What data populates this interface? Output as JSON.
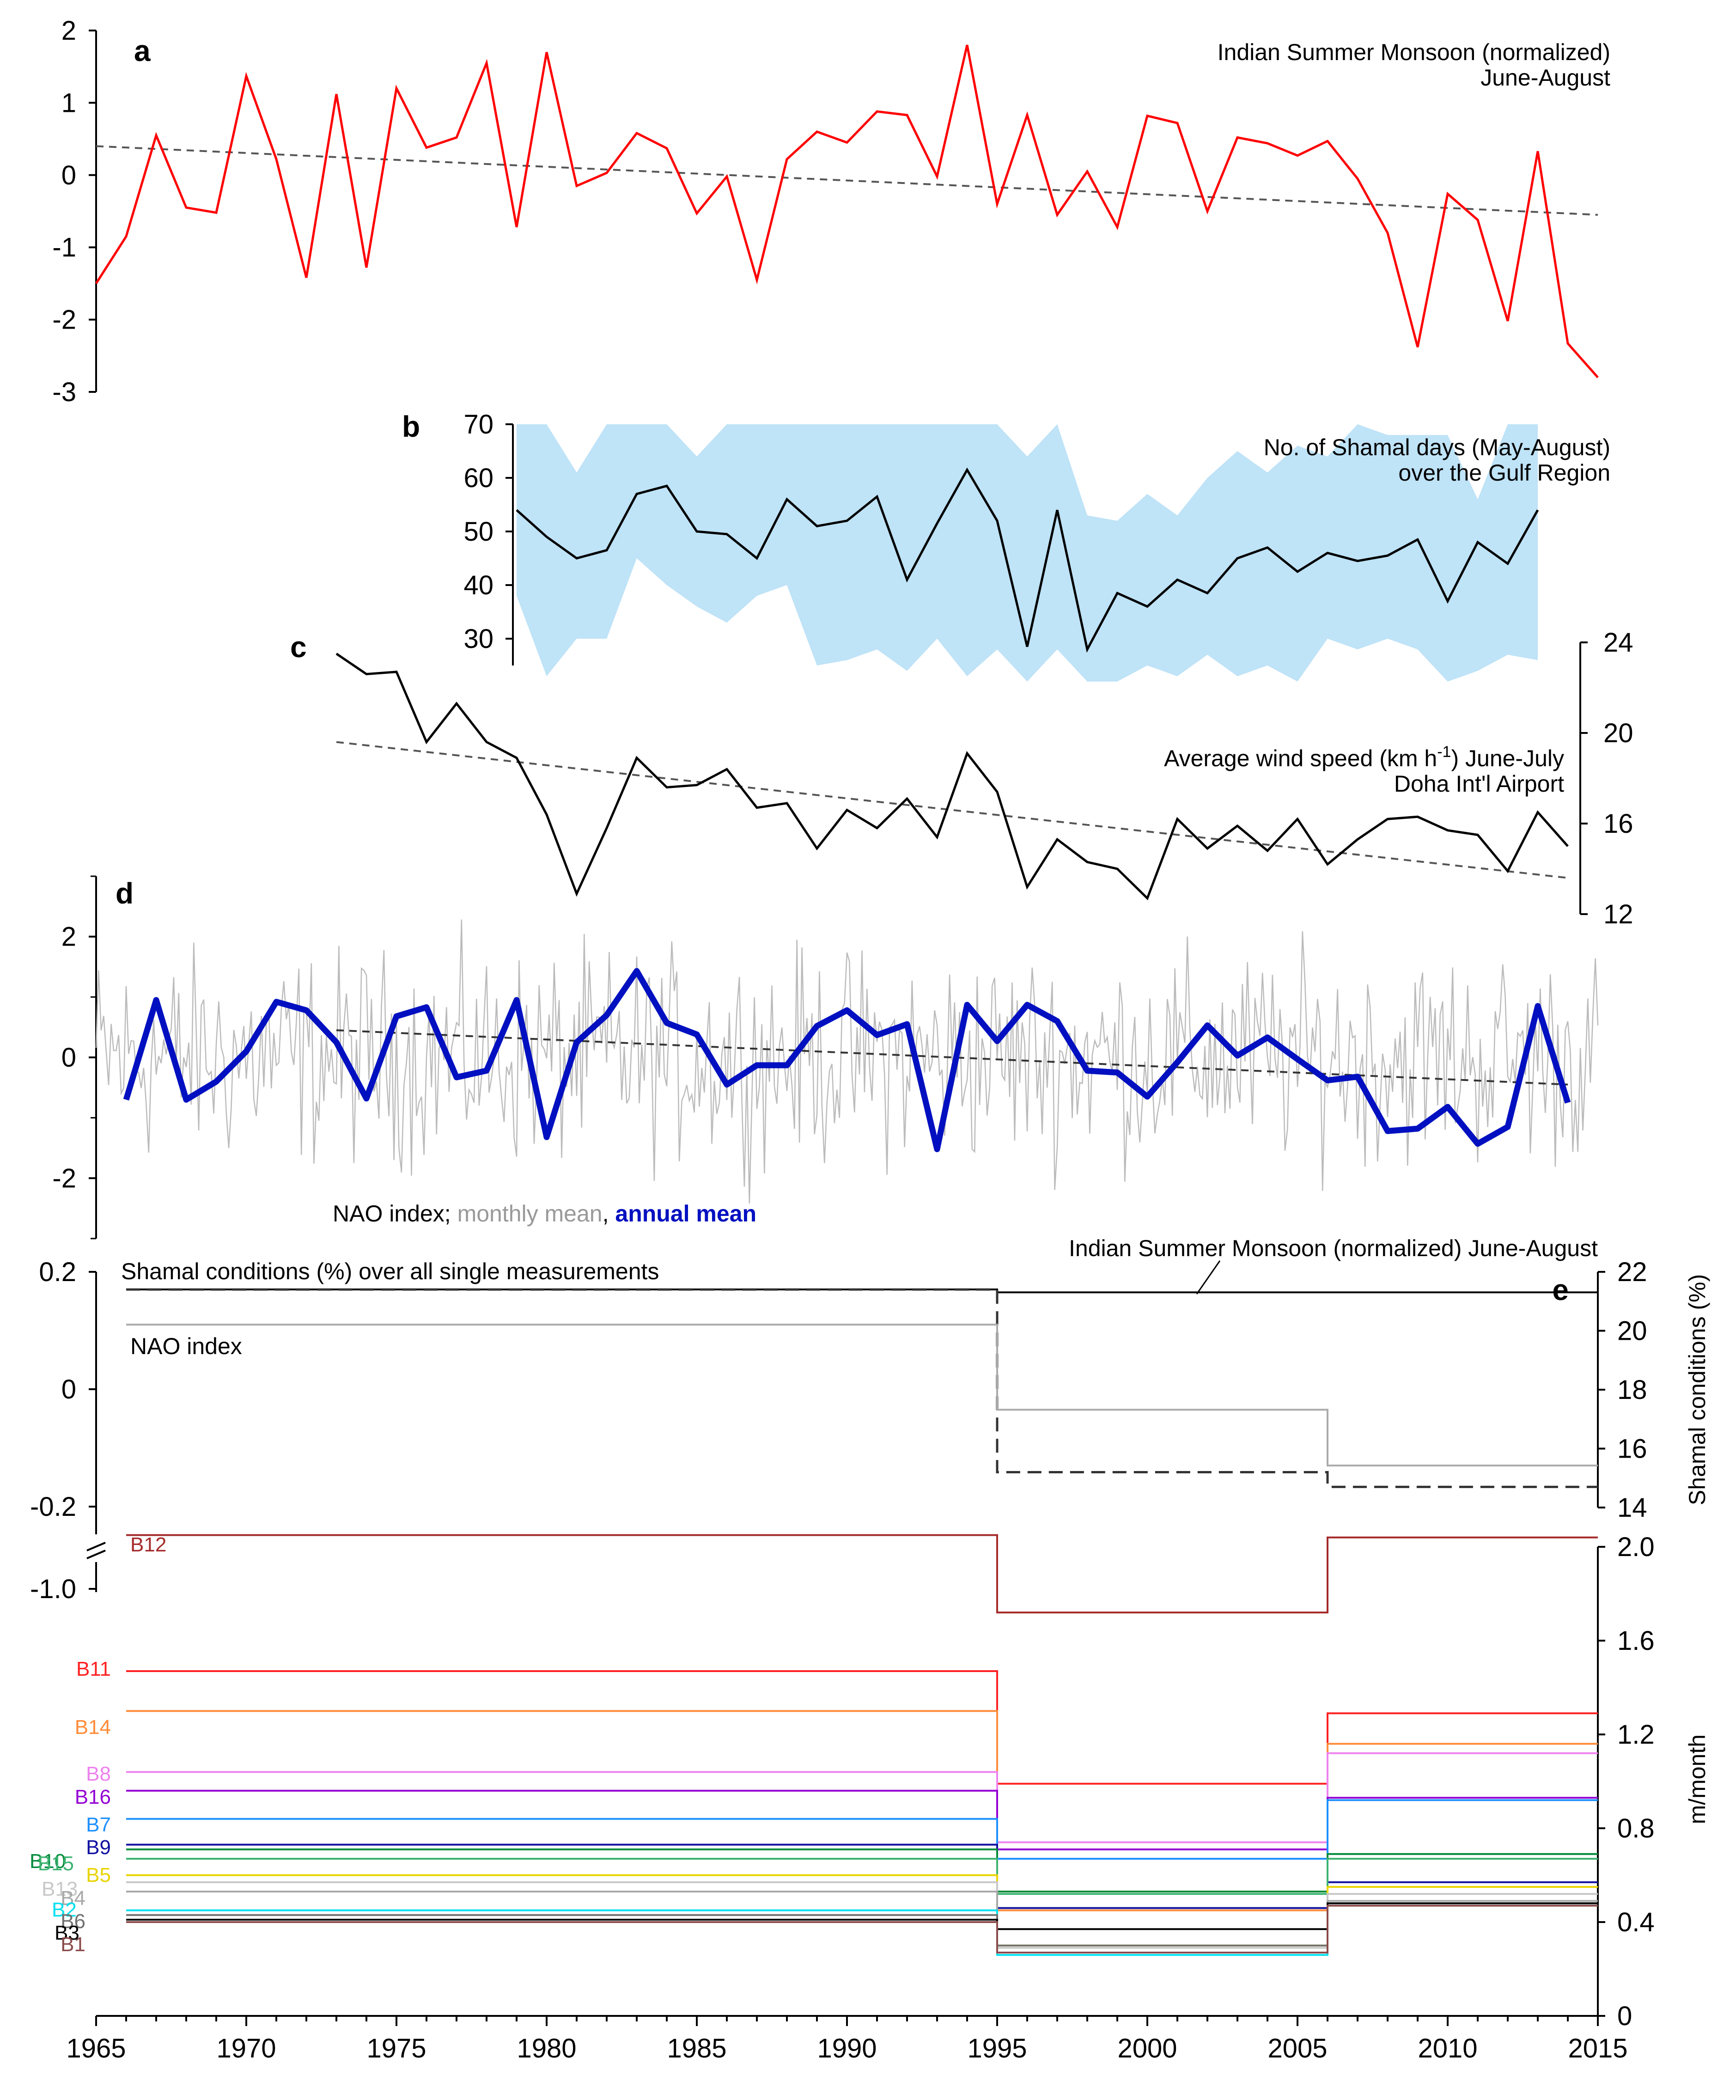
{
  "colors": {
    "isr": "#ff0000",
    "shamal": "#000000",
    "band": "#bfe3f7",
    "wind": "#000000",
    "nao_monthly": "#bbbbbb",
    "nao_annual": "#0010c0",
    "trend": "#555555",
    "nao_step": "#aaaaaa"
  },
  "chart_data": [
    {
      "id": "a",
      "type": "line",
      "panel_label": "a",
      "title": "Indian Summer Monsoon (normalized)",
      "subtitle": "June-August",
      "ylim": [
        -3,
        2
      ],
      "yticks": [
        "2",
        "1",
        "0",
        "-1",
        "-2",
        "-3"
      ],
      "x": [
        1965,
        1966,
        1967,
        1968,
        1969,
        1970,
        1971,
        1972,
        1973,
        1974,
        1975,
        1976,
        1977,
        1978,
        1979,
        1980,
        1981,
        1982,
        1983,
        1984,
        1985,
        1986,
        1987,
        1988,
        1989,
        1990,
        1991,
        1992,
        1993,
        1994,
        1995,
        1996,
        1997,
        1998,
        1999,
        2000,
        2001,
        2002,
        2003,
        2004,
        2005,
        2006,
        2007,
        2008,
        2009,
        2010,
        2011,
        2012,
        2013,
        2014,
        2015
      ],
      "series": [
        {
          "values": [
            -1.5,
            -0.85,
            0.55,
            -0.45,
            -0.52,
            1.37,
            0.22,
            -1.42,
            1.12,
            -1.28,
            1.2,
            0.38,
            0.52,
            1.55,
            -0.72,
            1.7,
            -0.15,
            0.03,
            0.58,
            0.37,
            -0.53,
            -0.02,
            -1.45,
            0.22,
            0.6,
            0.45,
            0.88,
            0.83,
            -0.02,
            1.8,
            -0.4,
            0.83,
            -0.55,
            0.05,
            -0.72,
            0.82,
            0.72,
            -0.5,
            0.52,
            0.44,
            0.27,
            0.47,
            -0.05,
            -0.8,
            -2.38,
            -0.26,
            -0.62,
            -2.02,
            0.33,
            -2.33,
            -2.8
          ]
        }
      ],
      "trend": {
        "x": [
          1965,
          2015
        ],
        "y": [
          0.4,
          -0.55
        ]
      }
    },
    {
      "id": "b",
      "type": "area",
      "panel_label": "b",
      "title": "No. of Shamal days (May-August)",
      "subtitle": "over the Gulf Region",
      "ylim": [
        25,
        70
      ],
      "yticks": [
        "70",
        "60",
        "50",
        "40",
        "30"
      ],
      "x": [
        1979,
        1980,
        1981,
        1982,
        1983,
        1984,
        1985,
        1986,
        1987,
        1988,
        1989,
        1990,
        1991,
        1992,
        1993,
        1994,
        1995,
        1996,
        1997,
        1998,
        1999,
        2000,
        2001,
        2002,
        2003,
        2004,
        2005,
        2006,
        2007,
        2008,
        2009,
        2010,
        2011,
        2012,
        2013
      ],
      "series": [
        {
          "values": [
            54,
            49,
            45,
            46.5,
            57,
            58.5,
            50,
            49.5,
            45,
            56,
            51,
            52,
            56.5,
            41,
            51.5,
            61.5,
            52,
            28.5,
            54,
            28,
            38.5,
            36,
            41,
            38.5,
            45,
            47,
            42.5,
            46,
            44.5,
            45.5,
            48.5,
            37,
            48,
            44,
            54
          ]
        }
      ],
      "band_upper": [
        70,
        70,
        61,
        70,
        70,
        70,
        64,
        70,
        70,
        70,
        70,
        70,
        70,
        70,
        70,
        70,
        70,
        64,
        70,
        53,
        52,
        57,
        53,
        60,
        65,
        61,
        66,
        64,
        70,
        68,
        68,
        68,
        56,
        70,
        70
      ],
      "band_lower": [
        38,
        23,
        30,
        30,
        45,
        40,
        36,
        33,
        38,
        40,
        25,
        26,
        28,
        24,
        30,
        23,
        28,
        22,
        28,
        22,
        22,
        25,
        23,
        27,
        23,
        25,
        22,
        30,
        28,
        30,
        28,
        22,
        24,
        27,
        26
      ]
    },
    {
      "id": "c",
      "type": "line",
      "panel_label": "c",
      "title": "Average wind speed (km h⁻¹) June-July",
      "subtitle": "Doha Int'l Airport",
      "ylim": [
        12,
        24
      ],
      "yticks": [
        "24",
        "20",
        "16",
        "12"
      ],
      "x": [
        1973,
        1974,
        1975,
        1976,
        1977,
        1978,
        1979,
        1980,
        1981,
        1982,
        1983,
        1984,
        1985,
        1986,
        1987,
        1988,
        1989,
        1990,
        1991,
        1992,
        1993,
        1994,
        1995,
        1996,
        1997,
        1998,
        1999,
        2000,
        2001,
        2002,
        2003,
        2004,
        2005,
        2006,
        2007,
        2008,
        2009,
        2010,
        2011,
        2012,
        2013,
        2014
      ],
      "series": [
        {
          "values": [
            23.5,
            22.6,
            22.7,
            19.6,
            21.3,
            19.6,
            18.9,
            16.4,
            12.9,
            15.8,
            18.9,
            17.6,
            17.7,
            18.4,
            16.7,
            16.9,
            14.9,
            16.6,
            15.8,
            17.1,
            15.4,
            19.1,
            17.4,
            13.2,
            15.3,
            14.3,
            14,
            12.7,
            16.2,
            14.9,
            15.9,
            14.8,
            16.2,
            14.2,
            15.3,
            16.2,
            16.3,
            15.7,
            15.5,
            13.9,
            16.5,
            15
          ]
        }
      ],
      "trend": {
        "x": [
          1973,
          2014
        ],
        "y": [
          19.6,
          13.6
        ]
      }
    },
    {
      "id": "d",
      "type": "line",
      "panel_label": "d",
      "caption": {
        "a": "NAO index; ",
        "b": "monthly mean",
        "c": ", ",
        "d": "annual mean"
      },
      "ylim": [
        -3,
        3
      ],
      "yticks": [
        "2",
        "0",
        "-2"
      ],
      "x": [
        1966,
        1967,
        1968,
        1969,
        1970,
        1971,
        1972,
        1973,
        1974,
        1975,
        1976,
        1977,
        1978,
        1979,
        1980,
        1981,
        1982,
        1983,
        1984,
        1985,
        1986,
        1987,
        1988,
        1989,
        1990,
        1991,
        1992,
        1993,
        1994,
        1995,
        1996,
        1997,
        1998,
        1999,
        2000,
        2001,
        2002,
        2003,
        2004,
        2005,
        2006,
        2007,
        2008,
        2009,
        2010,
        2011,
        2012,
        2013,
        2014
      ],
      "series": [
        {
          "name": "annual mean",
          "values": [
            -0.7,
            0.95,
            -0.7,
            -0.4,
            0.1,
            0.92,
            0.78,
            0.25,
            -0.68,
            0.68,
            0.83,
            -0.33,
            -0.22,
            0.95,
            -1.32,
            0.25,
            0.7,
            1.43,
            0.57,
            0.38,
            -0.45,
            -0.13,
            -0.13,
            0.52,
            0.78,
            0.37,
            0.55,
            -1.52,
            0.87,
            0.27,
            0.87,
            0.6,
            -0.22,
            -0.25,
            -0.65,
            -0.08,
            0.53,
            0.03,
            0.33,
            -0.03,
            -0.38,
            -0.32,
            -1.22,
            -1.18,
            -0.82,
            -1.43,
            -1.15,
            0.85,
            -0.75
          ]
        }
      ],
      "trend": {
        "x": [
          1973,
          2014
        ],
        "y": [
          0.45,
          -0.45
        ]
      }
    },
    {
      "id": "e",
      "type": "line",
      "panel_label": "e",
      "label_monsoon": "Indian Summer Monsoon (normalized) June-August",
      "label_shamal": "Shamal conditions (%) over all single measurements",
      "label_nao": "NAO index",
      "yticks_left_upper": [
        "0.2",
        "0",
        "-0.2"
      ],
      "ytick_left_break": "-1.0",
      "yticks_right_upper": [
        "22",
        "20",
        "18",
        "16",
        "14"
      ],
      "ylabel_right_upper": "Shamal conditions (%)",
      "yticks_right_lower": [
        "2.0",
        "1.6",
        "1.2",
        "0.8",
        "0.4",
        "0"
      ],
      "ylabel_right_lower": "m/month",
      "xlim": [
        1965,
        2015
      ],
      "xticks": [
        "1965",
        "1970",
        "1975",
        "1980",
        "1985",
        "1990",
        "1995",
        "2000",
        "2005",
        "2010",
        "2015"
      ],
      "periods": [
        [
          1966,
          1995
        ],
        [
          1995,
          2006
        ],
        [
          2006,
          2015
        ]
      ],
      "monsoon_index": [
        0.17,
        0.165,
        0.165
      ],
      "shamal_pct": [
        21.4,
        15.2,
        14.7
      ],
      "nao_index": [
        0.11,
        -0.035,
        -0.13
      ],
      "lines": [
        {
          "name": "B12",
          "color": "#a52a2a",
          "values": [
            2.05,
            1.72,
            2.04
          ]
        },
        {
          "name": "B11",
          "color": "#ff2020",
          "values": [
            1.47,
            0.99,
            1.29
          ]
        },
        {
          "name": "B14",
          "color": "#ff8c3a",
          "values": [
            1.3,
            0.45,
            1.16
          ]
        },
        {
          "name": "B8",
          "color": "#ee82ee",
          "values": [
            1.04,
            0.74,
            1.12
          ]
        },
        {
          "name": "B16",
          "color": "#9400d3",
          "values": [
            0.96,
            0.71,
            0.93
          ]
        },
        {
          "name": "B7",
          "color": "#1e90ff",
          "values": [
            0.84,
            0.67,
            0.92
          ]
        },
        {
          "name": "B9",
          "color": "#1010a0",
          "values": [
            0.73,
            0.46,
            0.57
          ]
        },
        {
          "name": "B10",
          "color": "#008a3a",
          "values": [
            0.71,
            0.53,
            0.69
          ]
        },
        {
          "name": "B15",
          "color": "#3cb371",
          "values": [
            0.67,
            0.52,
            0.67
          ]
        },
        {
          "name": "B5",
          "color": "#e8d400",
          "values": [
            0.6,
            0.3,
            0.55
          ]
        },
        {
          "name": "B13",
          "color": "#c8c8c8",
          "values": [
            0.57,
            0.29,
            0.52
          ]
        },
        {
          "name": "B4",
          "color": "#a8a8a8",
          "values": [
            0.53,
            0.27,
            0.49
          ]
        },
        {
          "name": "B2",
          "color": "#00e0f0",
          "values": [
            0.45,
            0.26,
            0.48
          ]
        },
        {
          "name": "B6",
          "color": "#707070",
          "values": [
            0.43,
            0.3,
            0.47
          ]
        },
        {
          "name": "B3",
          "color": "#000000",
          "values": [
            0.41,
            0.37,
            0.48
          ]
        },
        {
          "name": "B1",
          "color": "#8b4a4a",
          "values": [
            0.4,
            0.27,
            0.47
          ]
        }
      ],
      "label_order": [
        "B12",
        "B11",
        "B14",
        "B8",
        "B16",
        "B7",
        "B9",
        "B10",
        "B15",
        "B5",
        "B13",
        "B4",
        "B2",
        "B6",
        "B3",
        "B1"
      ]
    }
  ]
}
